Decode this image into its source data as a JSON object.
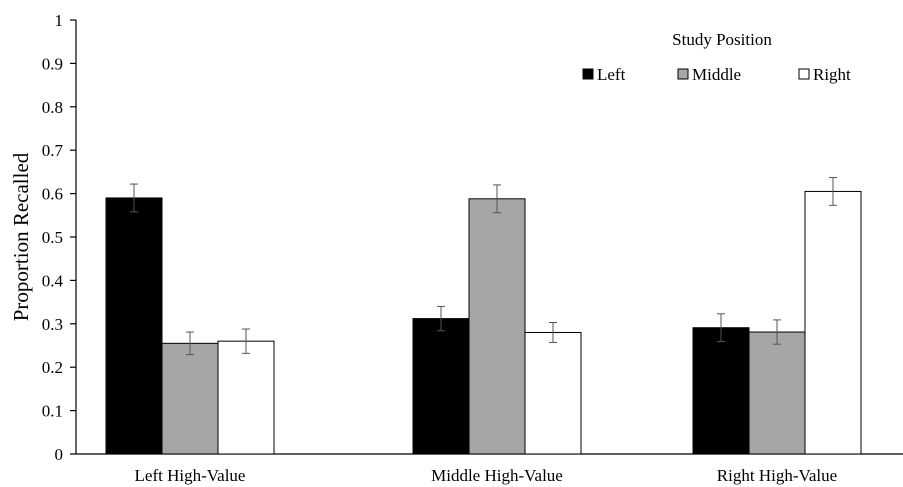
{
  "chart_data": {
    "type": "bar",
    "categories": [
      "Left High-Value",
      "Middle High-Value",
      "Right High-Value"
    ],
    "series": [
      {
        "name": "Left",
        "color": "#000000",
        "values": [
          0.59,
          0.312,
          0.291
        ],
        "errors": [
          0.032,
          0.028,
          0.032
        ]
      },
      {
        "name": "Middle",
        "color": "#a6a6a6",
        "values": [
          0.255,
          0.588,
          0.281
        ],
        "errors": [
          0.026,
          0.032,
          0.028
        ]
      },
      {
        "name": "Right",
        "color": "#ffffff",
        "values": [
          0.26,
          0.28,
          0.605
        ],
        "errors": [
          0.028,
          0.023,
          0.032
        ]
      }
    ],
    "ylabel": "Proportion Recalled",
    "xlabel": "",
    "ylim": [
      0,
      1
    ],
    "yticks": [
      "0",
      "0.1",
      "0.2",
      "0.3",
      "0.4",
      "0.5",
      "0.6",
      "0.7",
      "0.8",
      "0.9",
      "1"
    ],
    "legend": {
      "title": "Study Position",
      "position": "top-right"
    },
    "grid": false
  }
}
